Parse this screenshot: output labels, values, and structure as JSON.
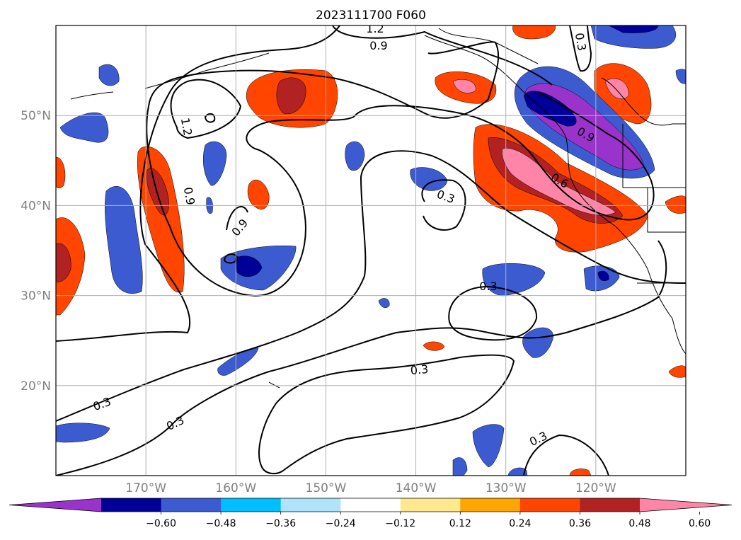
{
  "title": "2023111700 F060",
  "map": {
    "lon_range": [
      -180,
      -110
    ],
    "lat_range": [
      10,
      60
    ],
    "gridlines": true,
    "longitude_ticks": [
      {
        "lon": -170,
        "label": "170°W"
      },
      {
        "lon": -160,
        "label": "160°W"
      },
      {
        "lon": -150,
        "label": "150°W"
      },
      {
        "lon": -140,
        "label": "140°W"
      },
      {
        "lon": -130,
        "label": "130°W"
      },
      {
        "lon": -120,
        "label": "120°W"
      }
    ],
    "latitude_ticks": [
      {
        "lat": 50,
        "label": "50°N"
      },
      {
        "lat": 40,
        "label": "40°N"
      },
      {
        "lat": 30,
        "label": "30°N"
      },
      {
        "lat": 20,
        "label": "20°N"
      }
    ],
    "contour_labels": [
      "1.2",
      "0.9",
      "1.2",
      "0.9",
      "0.9",
      "0.3",
      "0.9",
      "0.6",
      "0.3",
      "0.3",
      "0.3",
      "0.3",
      "0.3",
      "0.3"
    ]
  },
  "colorbar": {
    "colors": [
      "#9933cc",
      "#000099",
      "#3d5bd1",
      "#00bfff",
      "#aee3fb",
      "#ffffff",
      "#ffe88e",
      "#ffa500",
      "#ff4500",
      "#b22222",
      "#ff85a8"
    ],
    "tick_labels": [
      "−0.60",
      "−0.48",
      "−0.36",
      "−0.24",
      "−0.12",
      "0.12",
      "0.24",
      "0.36",
      "0.48",
      "0.60"
    ],
    "extend": "both"
  }
}
